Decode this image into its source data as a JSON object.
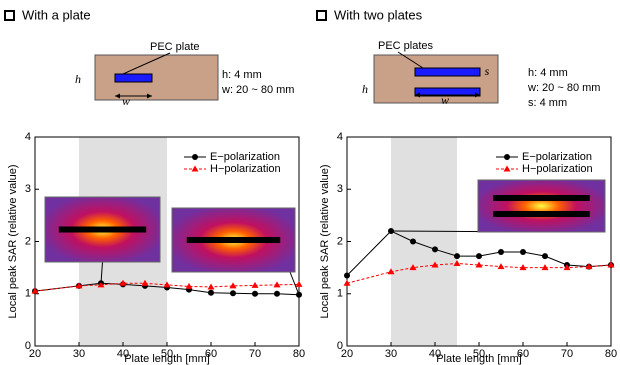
{
  "chart_data": [
    {
      "type": "line",
      "title": "With a plate",
      "diagram": {
        "label": "PEC plate",
        "dims": [
          "h",
          "w"
        ],
        "specs": [
          "h: 4 mm",
          "w: 20 ~ 80 mm"
        ]
      },
      "xlabel": "Plate length [mm]",
      "ylabel": "Local peak SAR (relative value)",
      "x": [
        20,
        30,
        35,
        40,
        45,
        50,
        55,
        60,
        65,
        70,
        75,
        80
      ],
      "series": [
        {
          "name": "E−polarization",
          "color": "#000000",
          "values": [
            1.05,
            1.15,
            1.2,
            1.18,
            1.15,
            1.12,
            1.08,
            1.02,
            1.01,
            1.0,
            1.0,
            0.98
          ]
        },
        {
          "name": "H−polarization",
          "color": "#ff0000",
          "values": [
            1.05,
            1.15,
            1.17,
            1.2,
            1.2,
            1.17,
            1.14,
            1.13,
            1.15,
            1.16,
            1.17,
            1.18
          ]
        }
      ],
      "xlim": [
        20,
        80
      ],
      "ylim": [
        0,
        4
      ],
      "xticks": [
        20,
        30,
        40,
        50,
        60,
        70,
        80
      ],
      "yticks": [
        0,
        1,
        2,
        3,
        4
      ],
      "highlight": [
        30,
        50
      ],
      "legend": "upper right"
    },
    {
      "type": "line",
      "title": "With two plates",
      "diagram": {
        "label": "PEC plates",
        "dims": [
          "h",
          "w",
          "s"
        ],
        "specs": [
          "h: 4 mm",
          "w: 20 ~ 80 mm",
          "s: 4 mm"
        ]
      },
      "xlabel": "Plate length [mm]",
      "ylabel": "Local peak SAR (relative value)",
      "x": [
        20,
        30,
        35,
        40,
        45,
        50,
        55,
        60,
        65,
        70,
        75,
        80
      ],
      "series": [
        {
          "name": "E−polarization",
          "color": "#000000",
          "values": [
            1.35,
            2.2,
            2.0,
            1.85,
            1.72,
            1.72,
            1.8,
            1.8,
            1.72,
            1.55,
            1.52,
            1.55
          ]
        },
        {
          "name": "H−polarization",
          "color": "#ff0000",
          "values": [
            1.2,
            1.42,
            1.5,
            1.55,
            1.58,
            1.55,
            1.52,
            1.5,
            1.5,
            1.5,
            1.52,
            1.55
          ]
        }
      ],
      "xlim": [
        20,
        80
      ],
      "ylim": [
        0,
        4
      ],
      "xticks": [
        20,
        30,
        40,
        50,
        60,
        70,
        80
      ],
      "yticks": [
        0,
        1,
        2,
        3,
        4
      ],
      "highlight": [
        30,
        45
      ],
      "legend": "upper right"
    }
  ]
}
